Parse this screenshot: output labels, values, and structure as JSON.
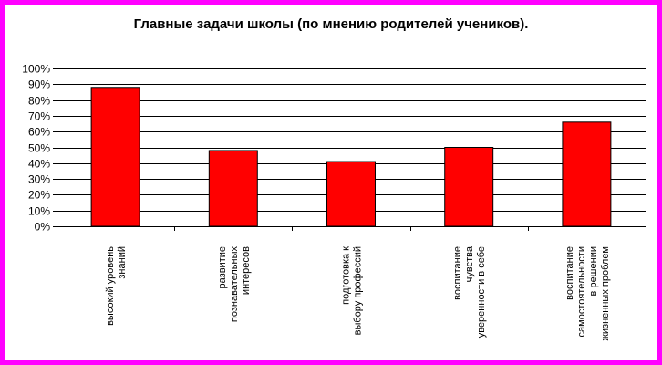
{
  "chart_data": {
    "type": "bar",
    "title": "Главные задачи школы (по мнению родителей учеников).",
    "categories": [
      [
        "высокий уровень",
        "знаний"
      ],
      [
        "развитие",
        "познавательных",
        "интересов"
      ],
      [
        "подготовка к",
        "выбору профессий"
      ],
      [
        "воспитание",
        "чувства",
        "уверенности в себе"
      ],
      [
        "воспитание",
        "самостоятельности",
        "в решении",
        "жизненных проблем"
      ]
    ],
    "values": [
      88,
      48,
      41,
      50,
      66
    ],
    "ylim": [
      0,
      100
    ],
    "yticks": [
      "0%",
      "10%",
      "20%",
      "30%",
      "40%",
      "50%",
      "60%",
      "70%",
      "80%",
      "90%",
      "100%"
    ],
    "grid": true,
    "legend": "none",
    "colors": {
      "bar_fill": "#ff0000",
      "bar_stroke": "#000000",
      "border": "#ff00ff",
      "grid": "#000000"
    }
  }
}
